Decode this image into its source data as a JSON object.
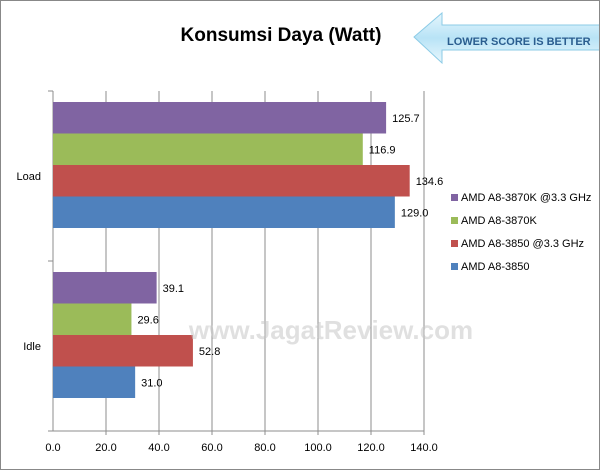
{
  "chart_data": {
    "type": "bar",
    "orientation": "horizontal",
    "title": "Konsumsi Daya (Watt)",
    "categories": [
      "Load",
      "Idle"
    ],
    "series": [
      {
        "name": "AMD A8-3870K @3.3 GHz",
        "color": "#8064a2",
        "values": [
          125.7,
          39.1
        ],
        "labels": [
          "125.7",
          "39.1"
        ]
      },
      {
        "name": "AMD A8-3870K",
        "color": "#9bbb59",
        "values": [
          116.9,
          29.6
        ],
        "labels": [
          "116.9",
          "29.6"
        ]
      },
      {
        "name": "AMD A8-3850 @3.3 GHz",
        "color": "#c0504d",
        "values": [
          134.6,
          52.8
        ],
        "labels": [
          "134.6",
          "52.8"
        ]
      },
      {
        "name": "AMD A8-3850",
        "color": "#4f81bd",
        "values": [
          129.0,
          31.0
        ],
        "labels": [
          "129.0",
          "31.0"
        ]
      }
    ],
    "xlim": [
      0,
      140
    ],
    "xticks": [
      "0.0",
      "20.0",
      "40.0",
      "60.0",
      "80.0",
      "100.0",
      "120.0",
      "140.0"
    ],
    "grid": true,
    "legend_position": "right",
    "annotation": "LOWER SCORE IS BETTER",
    "watermark": "www.JagatReview.com"
  }
}
